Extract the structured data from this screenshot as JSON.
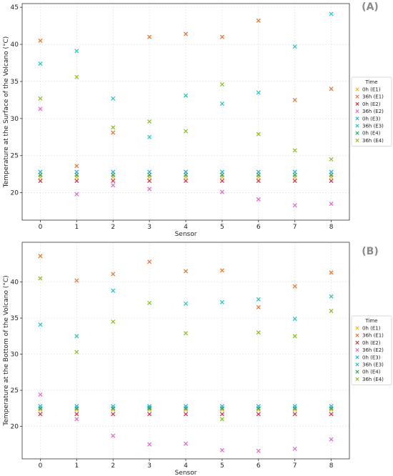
{
  "colors": {
    "0h (E1)": "#f5b80f",
    "36h (E1)": "#e9742a",
    "0h (E2)": "#dc2e3b",
    "36h (E2)": "#e467c8",
    "0h (E3)": "#1bb0e0",
    "36h (E3)": "#1fc7c1",
    "0h (E4)": "#1fa65a",
    "36h (E4)": "#8cbf1c"
  },
  "chart_data": [
    {
      "type": "scatter",
      "panel": "(A)",
      "xlabel": "Sensor",
      "ylabel": "Temperature at the Surface of the Volcano (°C)",
      "xlim": [
        -0.5,
        8.5
      ],
      "ylim": [
        16.3,
        45.5
      ],
      "xticks": [
        0,
        1,
        2,
        3,
        4,
        5,
        6,
        7,
        8
      ],
      "yticks": [
        20,
        25,
        30,
        35,
        40,
        45
      ],
      "grid": true,
      "legend_title": "Time",
      "legend_position": "right",
      "series": [
        {
          "name": "0h (E1)",
          "x": [
            0,
            1,
            2,
            3,
            4,
            5,
            6,
            7,
            8
          ],
          "y": [
            22.1,
            22.1,
            22.1,
            22.1,
            22.1,
            22.1,
            22.1,
            22.1,
            22.1
          ]
        },
        {
          "name": "36h (E1)",
          "x": [
            0,
            1,
            2,
            3,
            4,
            5,
            6,
            7,
            8
          ],
          "y": [
            40.5,
            23.6,
            28.1,
            41.0,
            41.4,
            41.0,
            43.2,
            32.5,
            34.0
          ]
        },
        {
          "name": "0h (E2)",
          "x": [
            0,
            1,
            2,
            3,
            4,
            5,
            6,
            7,
            8
          ],
          "y": [
            21.6,
            21.6,
            21.6,
            21.6,
            21.6,
            21.6,
            21.6,
            21.6,
            21.6
          ]
        },
        {
          "name": "36h (E2)",
          "x": [
            0,
            1,
            2,
            3,
            4,
            5,
            6,
            7,
            8
          ],
          "y": [
            31.3,
            19.8,
            21.0,
            20.5,
            22.8,
            20.1,
            19.1,
            18.3,
            18.5
          ]
        },
        {
          "name": "0h (E3)",
          "x": [
            0,
            1,
            2,
            3,
            4,
            5,
            6,
            7,
            8
          ],
          "y": [
            22.8,
            22.8,
            22.8,
            22.8,
            22.8,
            22.8,
            22.8,
            22.8,
            22.8
          ]
        },
        {
          "name": "36h (E3)",
          "x": [
            0,
            1,
            2,
            3,
            4,
            5,
            6,
            7,
            8
          ],
          "y": [
            37.4,
            39.1,
            32.7,
            27.5,
            33.1,
            32.0,
            33.5,
            39.7,
            44.1
          ]
        },
        {
          "name": "0h (E4)",
          "x": [
            0,
            1,
            2,
            3,
            4,
            5,
            6,
            7,
            8
          ],
          "y": [
            22.4,
            22.4,
            22.4,
            22.4,
            22.4,
            22.4,
            22.4,
            22.4,
            22.4
          ]
        },
        {
          "name": "36h (E4)",
          "x": [
            0,
            1,
            2,
            3,
            4,
            5,
            6,
            7,
            8
          ],
          "y": [
            32.7,
            35.6,
            28.8,
            29.6,
            28.3,
            34.6,
            27.9,
            25.7,
            24.5
          ]
        }
      ]
    },
    {
      "type": "scatter",
      "panel": "(B)",
      "xlabel": "Sensor",
      "ylabel": "Temperature at the Bottom of the Volcano (°C)",
      "xlim": [
        -0.5,
        8.5
      ],
      "ylim": [
        15.5,
        45.5
      ],
      "xticks": [
        0,
        1,
        2,
        3,
        4,
        5,
        6,
        7,
        8
      ],
      "yticks": [
        20,
        25,
        30,
        35,
        40
      ],
      "grid": true,
      "legend_title": "Time",
      "legend_position": "right",
      "series": [
        {
          "name": "0h (E1)",
          "x": [
            0,
            1,
            2,
            3,
            4,
            5,
            6,
            7,
            8
          ],
          "y": [
            22.3,
            22.3,
            22.3,
            22.3,
            22.3,
            22.3,
            22.3,
            22.3,
            22.3
          ]
        },
        {
          "name": "36h (E1)",
          "x": [
            0,
            1,
            2,
            3,
            4,
            5,
            6,
            7,
            8
          ],
          "y": [
            43.6,
            40.2,
            41.1,
            42.8,
            41.5,
            41.6,
            36.5,
            39.4,
            41.3
          ]
        },
        {
          "name": "0h (E2)",
          "x": [
            0,
            1,
            2,
            3,
            4,
            5,
            6,
            7,
            8
          ],
          "y": [
            21.7,
            21.7,
            21.7,
            21.7,
            21.7,
            21.7,
            21.7,
            21.7,
            21.7
          ]
        },
        {
          "name": "36h (E2)",
          "x": [
            0,
            1,
            2,
            3,
            4,
            5,
            6,
            7,
            8
          ],
          "y": [
            24.4,
            21.0,
            18.7,
            17.5,
            17.6,
            16.7,
            16.6,
            16.9,
            18.2
          ]
        },
        {
          "name": "0h (E3)",
          "x": [
            0,
            1,
            2,
            3,
            4,
            5,
            6,
            7,
            8
          ],
          "y": [
            22.8,
            22.8,
            22.8,
            22.8,
            22.8,
            22.8,
            22.8,
            22.8,
            22.8
          ]
        },
        {
          "name": "36h (E3)",
          "x": [
            0,
            1,
            2,
            3,
            4,
            5,
            6,
            7,
            8
          ],
          "y": [
            34.1,
            32.5,
            38.8,
            22.6,
            37.0,
            37.2,
            37.6,
            34.9,
            38.0
          ]
        },
        {
          "name": "0h (E4)",
          "x": [
            0,
            1,
            2,
            3,
            4,
            5,
            6,
            7,
            8
          ],
          "y": [
            22.5,
            22.5,
            22.5,
            22.5,
            22.5,
            22.5,
            22.5,
            22.5,
            22.5
          ]
        },
        {
          "name": "36h (E4)",
          "x": [
            0,
            1,
            2,
            3,
            4,
            5,
            6,
            7,
            8
          ],
          "y": [
            40.5,
            30.3,
            34.5,
            37.1,
            32.9,
            21.0,
            33.0,
            32.5,
            36.0
          ]
        }
      ]
    }
  ]
}
